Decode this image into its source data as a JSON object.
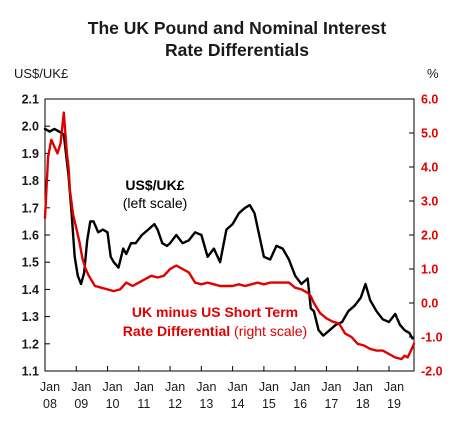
{
  "chart_data": {
    "type": "line",
    "title": [
      "The UK Pound and Nominal Interest",
      "Rate Differentials"
    ],
    "left_axis": {
      "label": "US$/UK£",
      "range": [
        1.1,
        2.1
      ],
      "ticks": [
        "1.1",
        "1.2",
        "1.3",
        "1.4",
        "1.5",
        "1.6",
        "1.7",
        "1.8",
        "1.9",
        "2.0",
        "2.1"
      ]
    },
    "right_axis": {
      "label": "%",
      "range": [
        -2.0,
        6.0
      ],
      "ticks": [
        "-2.0",
        "-1.0",
        "0.0",
        "1.0",
        "2.0",
        "3.0",
        "4.0",
        "5.0",
        "6.0"
      ]
    },
    "x_axis": {
      "range": [
        2008.0,
        2019.8
      ],
      "ticks": [
        {
          "x": 2008,
          "top": "Jan",
          "bottom": "08"
        },
        {
          "x": 2009,
          "top": "Jan",
          "bottom": "09"
        },
        {
          "x": 2010,
          "top": "Jan",
          "bottom": "10"
        },
        {
          "x": 2011,
          "top": "Jan",
          "bottom": "11"
        },
        {
          "x": 2012,
          "top": "Jan",
          "bottom": "12"
        },
        {
          "x": 2013,
          "top": "Jan",
          "bottom": "13"
        },
        {
          "x": 2014,
          "top": "Jan",
          "bottom": "14"
        },
        {
          "x": 2015,
          "top": "Jan",
          "bottom": "15"
        },
        {
          "x": 2016,
          "top": "Jan",
          "bottom": "16"
        },
        {
          "x": 2017,
          "top": "Jan",
          "bottom": "17"
        },
        {
          "x": 2018,
          "top": "Jan",
          "bottom": "18"
        },
        {
          "x": 2019,
          "top": "Jan",
          "bottom": "19"
        }
      ]
    },
    "grid": false,
    "annotations": {
      "gbp_line1": "US$/UK£",
      "gbp_line2": "(left scale)",
      "diff_line1": "UK minus US Short Term",
      "diff_line2_bold": "Rate Differential",
      "diff_line2_normal": " (right scale)"
    },
    "series": [
      {
        "name": "US$/UK£",
        "axis": "left",
        "color": "#000000",
        "x": [
          2008.0,
          2008.15,
          2008.3,
          2008.45,
          2008.6,
          2008.75,
          2008.85,
          2008.95,
          2009.05,
          2009.15,
          2009.25,
          2009.35,
          2009.45,
          2009.55,
          2009.7,
          2009.85,
          2010.0,
          2010.1,
          2010.2,
          2010.35,
          2010.5,
          2010.6,
          2010.75,
          2010.9,
          2011.1,
          2011.3,
          2011.5,
          2011.6,
          2011.75,
          2011.9,
          2012.0,
          2012.2,
          2012.4,
          2012.6,
          2012.8,
          2013.0,
          2013.2,
          2013.4,
          2013.6,
          2013.8,
          2014.0,
          2014.2,
          2014.4,
          2014.55,
          2014.7,
          2014.85,
          2015.0,
          2015.2,
          2015.4,
          2015.6,
          2015.8,
          2016.0,
          2016.2,
          2016.4,
          2016.5,
          2016.6,
          2016.75,
          2016.9,
          2017.1,
          2017.3,
          2017.5,
          2017.7,
          2017.9,
          2018.1,
          2018.25,
          2018.4,
          2018.6,
          2018.8,
          2019.0,
          2019.2,
          2019.35,
          2019.5,
          2019.65,
          2019.75
        ],
        "values": [
          1.99,
          1.98,
          1.99,
          1.98,
          1.97,
          1.82,
          1.68,
          1.52,
          1.45,
          1.42,
          1.46,
          1.58,
          1.65,
          1.65,
          1.61,
          1.62,
          1.61,
          1.52,
          1.5,
          1.48,
          1.55,
          1.53,
          1.57,
          1.57,
          1.6,
          1.62,
          1.64,
          1.62,
          1.57,
          1.56,
          1.57,
          1.6,
          1.57,
          1.58,
          1.61,
          1.6,
          1.52,
          1.55,
          1.5,
          1.62,
          1.64,
          1.68,
          1.7,
          1.71,
          1.68,
          1.6,
          1.52,
          1.51,
          1.56,
          1.55,
          1.51,
          1.45,
          1.42,
          1.44,
          1.33,
          1.32,
          1.25,
          1.23,
          1.25,
          1.27,
          1.28,
          1.32,
          1.34,
          1.37,
          1.42,
          1.36,
          1.32,
          1.29,
          1.28,
          1.31,
          1.27,
          1.25,
          1.24,
          1.22
        ]
      },
      {
        "name": "UK minus US Short Term Rate Differential",
        "axis": "right",
        "color": "#e00000",
        "x": [
          2008.0,
          2008.1,
          2008.2,
          2008.3,
          2008.4,
          2008.5,
          2008.6,
          2008.7,
          2008.75,
          2008.8,
          2008.9,
          2009.0,
          2009.1,
          2009.2,
          2009.3,
          2009.4,
          2009.6,
          2009.8,
          2010.0,
          2010.2,
          2010.4,
          2010.6,
          2010.8,
          2011.0,
          2011.2,
          2011.4,
          2011.6,
          2011.8,
          2012.0,
          2012.2,
          2012.4,
          2012.6,
          2012.8,
          2013.0,
          2013.2,
          2013.4,
          2013.6,
          2013.8,
          2014.0,
          2014.2,
          2014.4,
          2014.6,
          2014.8,
          2015.0,
          2015.2,
          2015.4,
          2015.6,
          2015.8,
          2016.0,
          2016.2,
          2016.4,
          2016.5,
          2016.6,
          2016.8,
          2017.0,
          2017.2,
          2017.4,
          2017.6,
          2017.8,
          2018.0,
          2018.2,
          2018.4,
          2018.6,
          2018.8,
          2019.0,
          2019.2,
          2019.4,
          2019.5,
          2019.6,
          2019.7,
          2019.8
        ],
        "values": [
          2.5,
          4.3,
          4.8,
          4.6,
          4.4,
          4.7,
          5.6,
          4.4,
          4.0,
          3.3,
          2.6,
          2.2,
          1.8,
          1.3,
          1.0,
          0.8,
          0.5,
          0.45,
          0.4,
          0.35,
          0.4,
          0.6,
          0.5,
          0.6,
          0.7,
          0.8,
          0.75,
          0.8,
          1.0,
          1.1,
          1.0,
          0.9,
          0.6,
          0.55,
          0.6,
          0.55,
          0.5,
          0.5,
          0.5,
          0.55,
          0.5,
          0.55,
          0.6,
          0.55,
          0.6,
          0.6,
          0.6,
          0.6,
          0.45,
          0.4,
          0.3,
          0.2,
          0.0,
          -0.3,
          -0.45,
          -0.55,
          -0.6,
          -0.9,
          -1.0,
          -1.2,
          -1.25,
          -1.35,
          -1.4,
          -1.4,
          -1.5,
          -1.6,
          -1.65,
          -1.55,
          -1.6,
          -1.4,
          -1.2
        ]
      }
    ]
  }
}
